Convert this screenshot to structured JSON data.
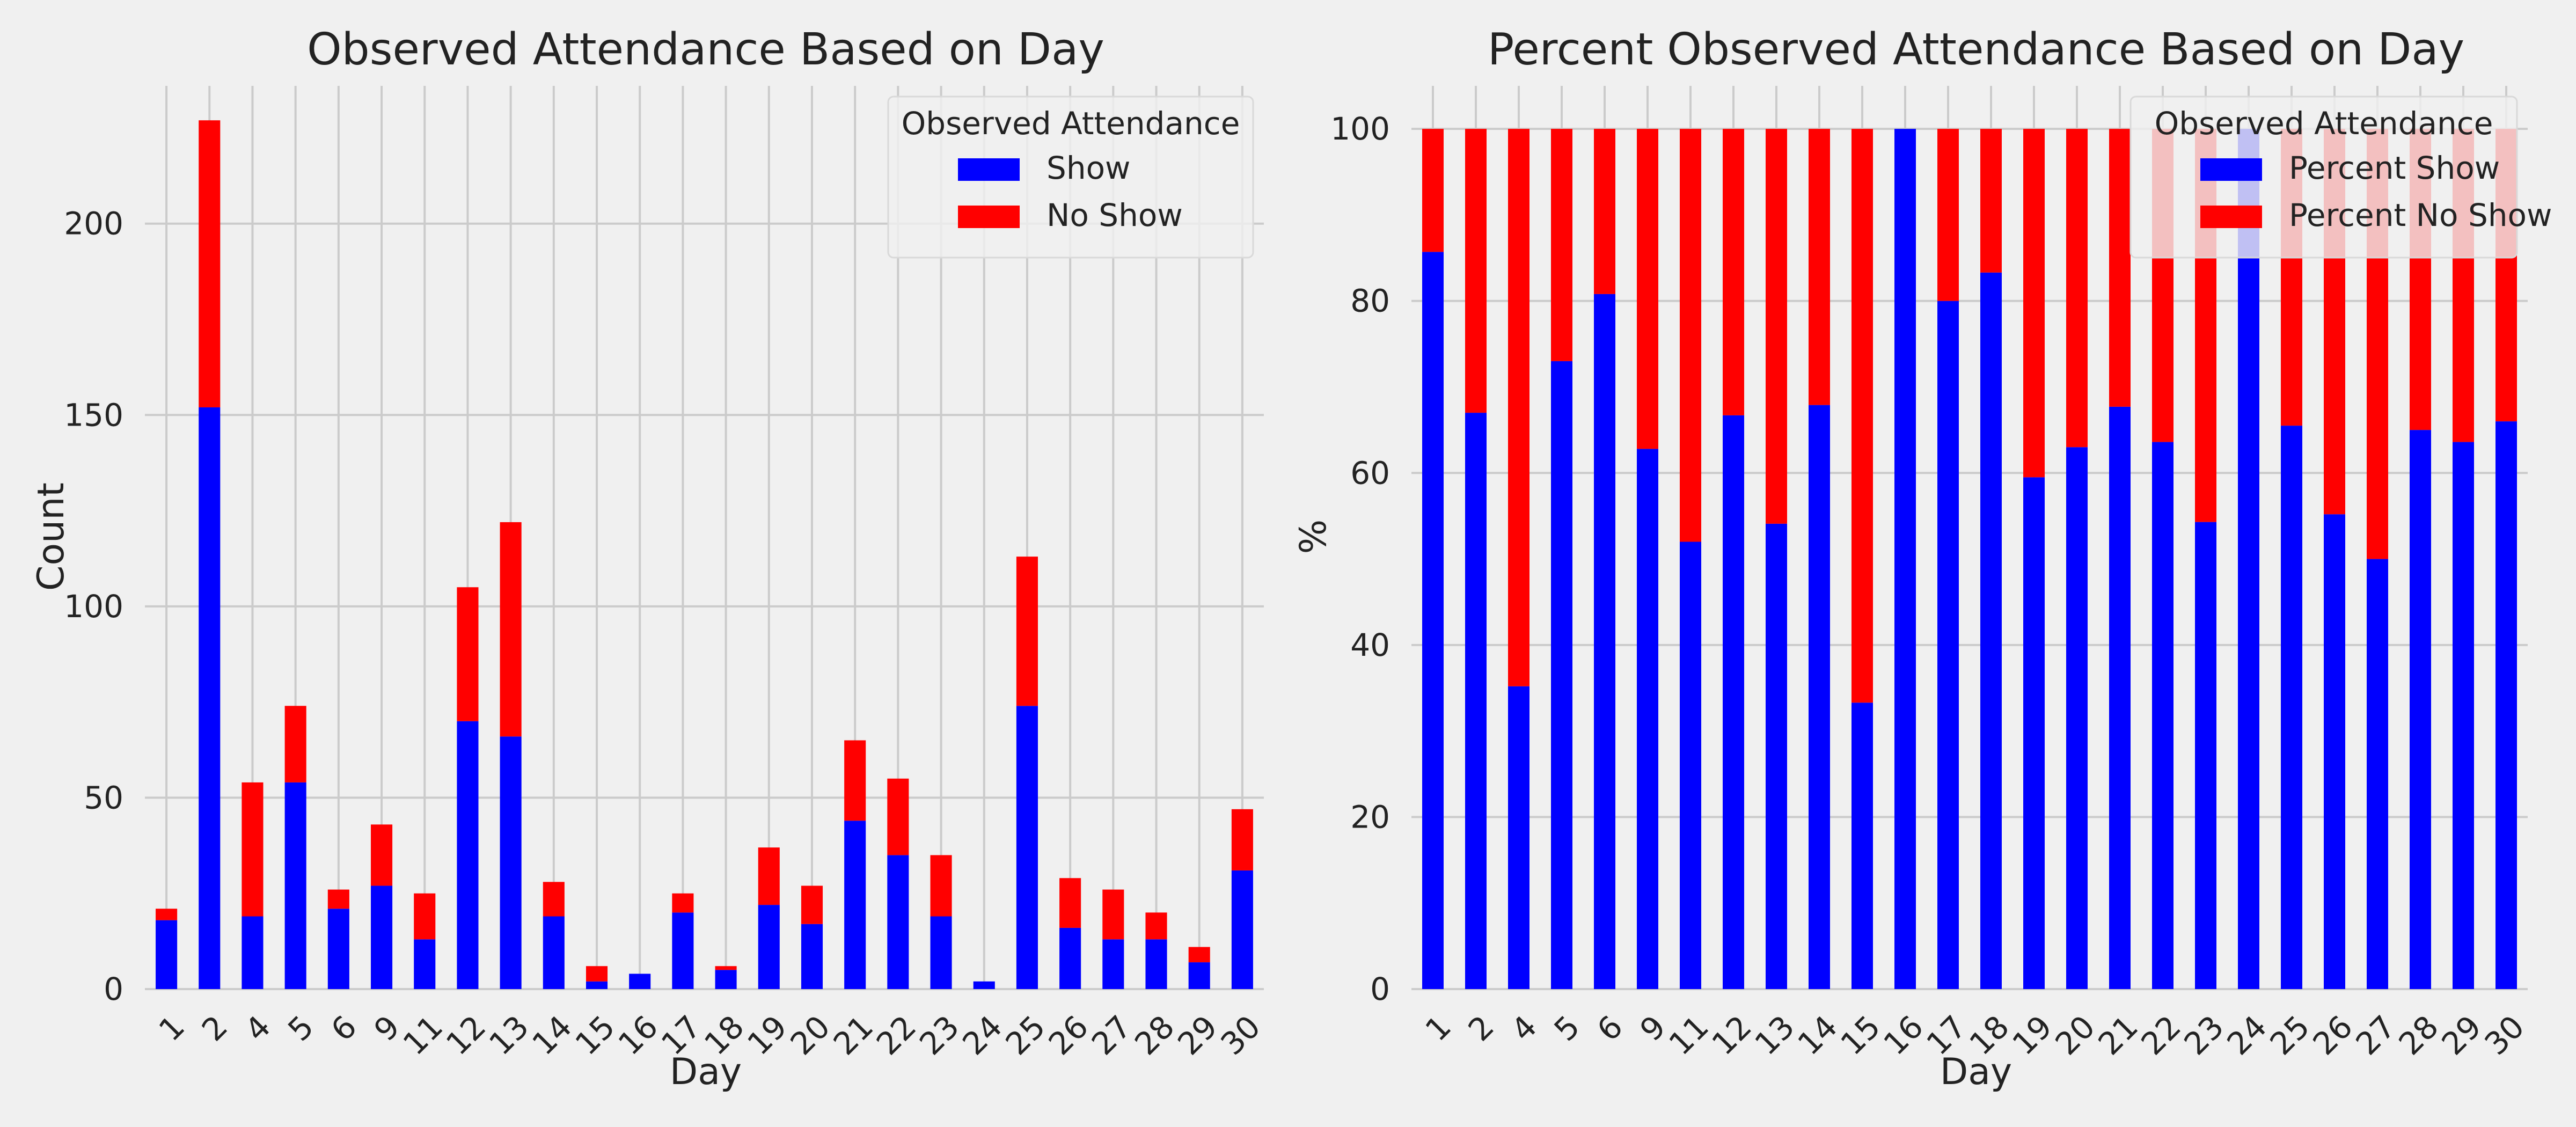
{
  "chart_data": [
    {
      "type": "bar",
      "stacked": true,
      "title": "Observed Attendance Based on Day",
      "xlabel": "Day",
      "ylabel": "Count",
      "ylim": [
        0,
        236
      ],
      "yticks": [
        0,
        50,
        100,
        150,
        200
      ],
      "grid": true,
      "legend_title": "Observed Attendance",
      "legend_position": "top-right",
      "categories": [
        "1",
        "2",
        "4",
        "5",
        "6",
        "9",
        "11",
        "12",
        "13",
        "14",
        "15",
        "16",
        "17",
        "18",
        "19",
        "20",
        "21",
        "22",
        "23",
        "24",
        "25",
        "26",
        "27",
        "28",
        "29",
        "30"
      ],
      "series": [
        {
          "name": "Show",
          "color": "#0000ff",
          "values": [
            18,
            152,
            19,
            54,
            21,
            27,
            13,
            70,
            66,
            19,
            2,
            4,
            20,
            5,
            22,
            17,
            44,
            35,
            19,
            2,
            74,
            16,
            13,
            13,
            7,
            31
          ]
        },
        {
          "name": "No Show",
          "color": "#ff0000",
          "values": [
            3,
            75,
            35,
            20,
            5,
            16,
            12,
            35,
            56,
            9,
            4,
            0,
            5,
            1,
            15,
            10,
            21,
            20,
            16,
            0,
            39,
            13,
            13,
            7,
            4,
            16
          ]
        }
      ]
    },
    {
      "type": "bar",
      "stacked": true,
      "title": "Percent Observed Attendance Based on Day",
      "xlabel": "Day",
      "ylabel": "%",
      "ylim": [
        0,
        105
      ],
      "yticks": [
        0,
        20,
        40,
        60,
        80,
        100
      ],
      "grid": true,
      "legend_title": "Observed Attendance",
      "legend_position": "top-right",
      "categories": [
        "1",
        "2",
        "4",
        "5",
        "6",
        "9",
        "11",
        "12",
        "13",
        "14",
        "15",
        "16",
        "17",
        "18",
        "19",
        "20",
        "21",
        "22",
        "23",
        "24",
        "25",
        "26",
        "27",
        "28",
        "29",
        "30"
      ],
      "series": [
        {
          "name": "Percent Show",
          "color": "#0000ff",
          "values": [
            85.7,
            67.0,
            35.2,
            73.0,
            80.8,
            62.8,
            52.0,
            66.7,
            54.1,
            67.9,
            33.3,
            100,
            80.0,
            83.3,
            59.5,
            63.0,
            67.7,
            63.6,
            54.3,
            100,
            65.5,
            55.2,
            50.0,
            65.0,
            63.6,
            66.0
          ]
        },
        {
          "name": "Percent No Show",
          "color": "#ff0000",
          "values": [
            14.3,
            33.0,
            64.8,
            27.0,
            19.2,
            37.2,
            48.0,
            33.3,
            45.9,
            32.1,
            66.7,
            0,
            20.0,
            16.7,
            40.5,
            37.0,
            32.3,
            36.4,
            45.7,
            0,
            34.5,
            44.8,
            50.0,
            35.0,
            36.4,
            34.0
          ]
        }
      ]
    }
  ]
}
